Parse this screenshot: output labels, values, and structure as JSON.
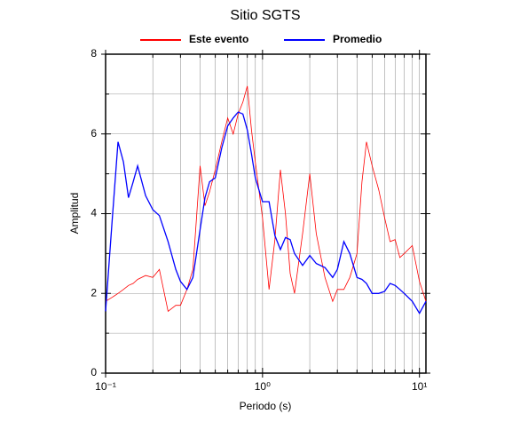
{
  "chart_data": {
    "type": "line",
    "title": "Sitio SGTS",
    "x_label": "Periodo (s)",
    "y_label": "Amplitud",
    "x_log": true,
    "grid": true,
    "legend": "top",
    "xlim": [
      0.1,
      11
    ],
    "ylim": [
      0,
      8
    ],
    "xticks": [
      {
        "value": 0.1,
        "label": "10⁻¹"
      },
      {
        "value": 1,
        "label": "10⁰"
      },
      {
        "value": 10,
        "label": "10¹"
      }
    ],
    "yticks": [
      0,
      2,
      4,
      6,
      8
    ],
    "y_minor_ticks": [
      1,
      3,
      5,
      7
    ],
    "x": [
      0.1,
      0.11,
      0.12,
      0.13,
      0.14,
      0.15,
      0.16,
      0.18,
      0.2,
      0.22,
      0.25,
      0.28,
      0.3,
      0.33,
      0.36,
      0.4,
      0.43,
      0.46,
      0.5,
      0.55,
      0.6,
      0.65,
      0.7,
      0.75,
      0.8,
      0.85,
      0.9,
      1.0,
      1.1,
      1.2,
      1.3,
      1.4,
      1.5,
      1.6,
      1.8,
      2.0,
      2.2,
      2.5,
      2.8,
      3.0,
      3.3,
      3.6,
      4.0,
      4.3,
      4.6,
      5.0,
      5.5,
      6,
      6.5,
      7,
      7.5,
      8,
      9,
      10,
      11
    ],
    "series": [
      {
        "name": "Este evento",
        "color": "#ff0000",
        "values": [
          1.8,
          1.9,
          2.0,
          2.1,
          2.2,
          2.25,
          2.35,
          2.45,
          2.4,
          2.6,
          1.55,
          1.7,
          1.7,
          2.1,
          2.6,
          5.2,
          4.2,
          4.55,
          5.1,
          5.8,
          6.4,
          6.0,
          6.5,
          6.8,
          7.2,
          6.1,
          5.3,
          3.9,
          2.1,
          3.35,
          5.1,
          4.0,
          2.5,
          2.0,
          3.5,
          5.0,
          3.5,
          2.4,
          1.8,
          2.1,
          2.1,
          2.4,
          3.0,
          4.8,
          5.8,
          5.2,
          4.6,
          3.9,
          3.3,
          3.35,
          2.9,
          3.0,
          3.2,
          2.3,
          1.8
        ]
      },
      {
        "name": "Promedio",
        "color": "#0000ff",
        "values": [
          1.55,
          3.8,
          5.8,
          5.3,
          4.4,
          4.8,
          5.2,
          4.45,
          4.1,
          3.95,
          3.3,
          2.6,
          2.3,
          2.1,
          2.4,
          3.6,
          4.4,
          4.8,
          4.9,
          5.65,
          6.2,
          6.4,
          6.55,
          6.5,
          6.1,
          5.5,
          4.9,
          4.3,
          4.3,
          3.45,
          3.1,
          3.4,
          3.35,
          3.0,
          2.7,
          2.95,
          2.75,
          2.65,
          2.4,
          2.6,
          3.3,
          3.0,
          2.4,
          2.35,
          2.25,
          2.0,
          2.0,
          2.05,
          2.25,
          2.2,
          2.1,
          2.0,
          1.8,
          1.5,
          1.8
        ]
      }
    ]
  }
}
